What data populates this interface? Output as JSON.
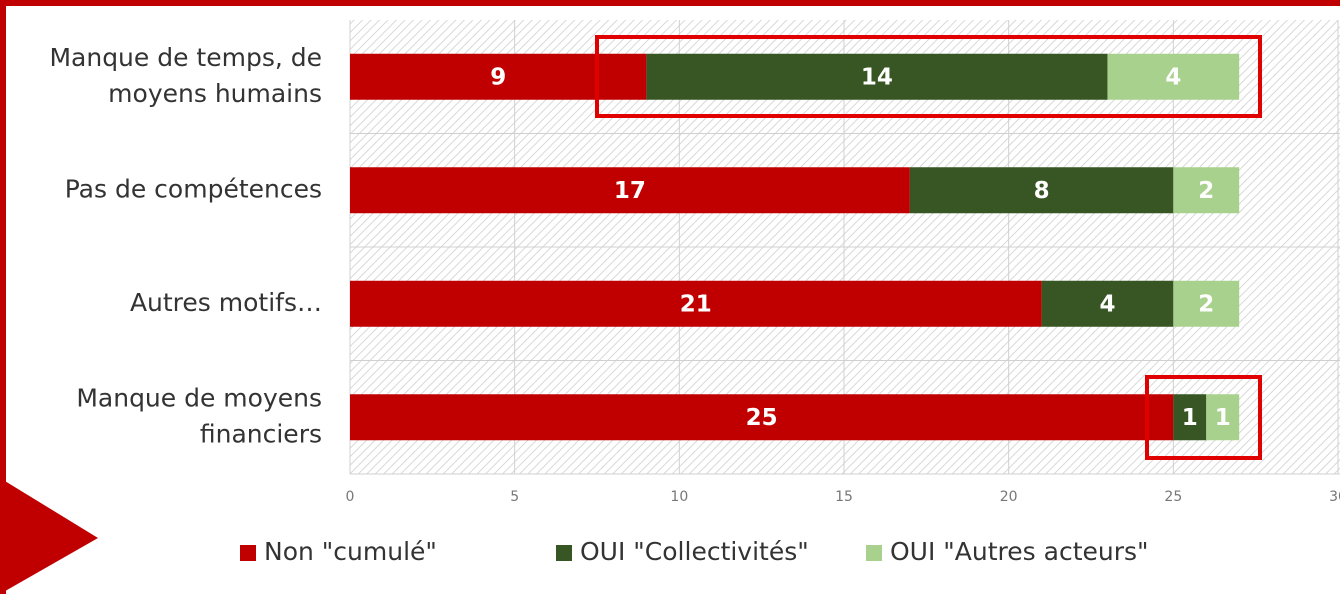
{
  "chart_data": {
    "type": "stacked_bar_horizontal",
    "categories": [
      [
        "Manque de temps, de",
        "moyens humains"
      ],
      [
        "Pas de compétences"
      ],
      [
        "Autres motifs…"
      ],
      [
        "Manque de moyens",
        "financiers"
      ]
    ],
    "series": [
      {
        "name": "Non \"cumulé\"",
        "color": "#c00000",
        "values": [
          9,
          17,
          21,
          25
        ]
      },
      {
        "name": "OUI \"Collectivités\"",
        "color": "#375623",
        "values": [
          14,
          8,
          4,
          1
        ]
      },
      {
        "name": "OUI \"Autres acteurs\"",
        "color": "#a9d18e",
        "values": [
          4,
          2,
          2,
          1
        ]
      }
    ],
    "xlim": [
      0,
      30
    ],
    "xticks": [
      0,
      5,
      10,
      15,
      20,
      25,
      30
    ],
    "grid": true,
    "legend": "bottom"
  }
}
